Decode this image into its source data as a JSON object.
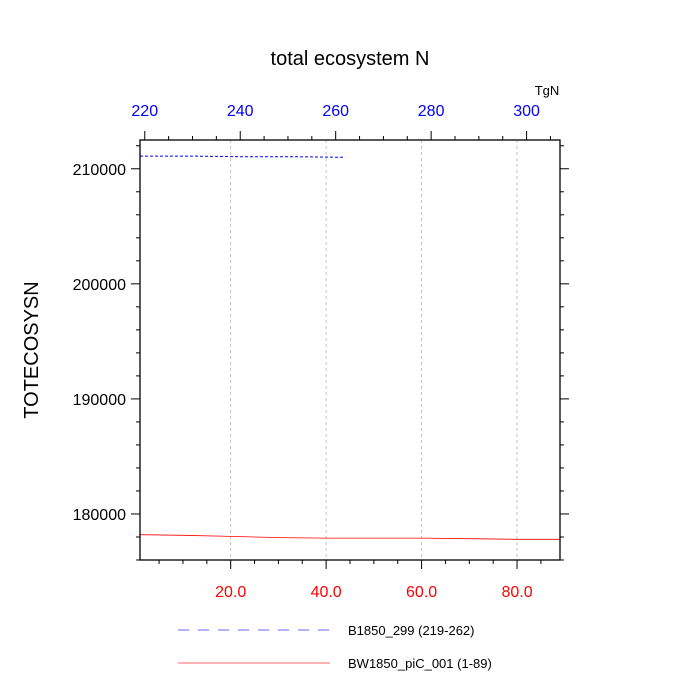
{
  "chart_data": {
    "type": "line",
    "title": "total ecosystem N",
    "ylabel": "TOTECOSYSN",
    "units": "TgN",
    "ylim": [
      176000,
      212500
    ],
    "y_ticks": [
      180000,
      190000,
      200000,
      210000
    ],
    "y_tick_labels": [
      "180000",
      "190000",
      "200000",
      "210000"
    ],
    "x_bottom": {
      "range": [
        1,
        89
      ],
      "ticks": [
        20,
        40,
        60,
        80
      ],
      "tick_labels": [
        "20.0",
        "40.0",
        "60.0",
        "80.0"
      ],
      "color": "#ff0000"
    },
    "x_top": {
      "range": [
        219,
        307
      ],
      "ticks": [
        220,
        240,
        260,
        280,
        300
      ],
      "tick_labels": [
        "220",
        "240",
        "260",
        "280",
        "300"
      ],
      "color": "#0000ff"
    },
    "grid": true,
    "legend_position": "bottom",
    "series": [
      {
        "name": "B1850_299 (219-262)",
        "axis": "top",
        "color": "#0000ff",
        "dash": "dashed",
        "x": [
          219,
          230,
          240,
          250,
          262
        ],
        "y": [
          211100,
          211100,
          211050,
          211050,
          211000
        ]
      },
      {
        "name": "BW1850_piC_001 (1-89)",
        "axis": "bottom",
        "color": "#ff0000",
        "dash": "solid",
        "x": [
          1,
          10,
          20,
          30,
          40,
          50,
          60,
          70,
          80,
          89
        ],
        "y": [
          178200,
          178150,
          178050,
          177950,
          177900,
          177900,
          177900,
          177850,
          177800,
          177800
        ]
      }
    ]
  }
}
